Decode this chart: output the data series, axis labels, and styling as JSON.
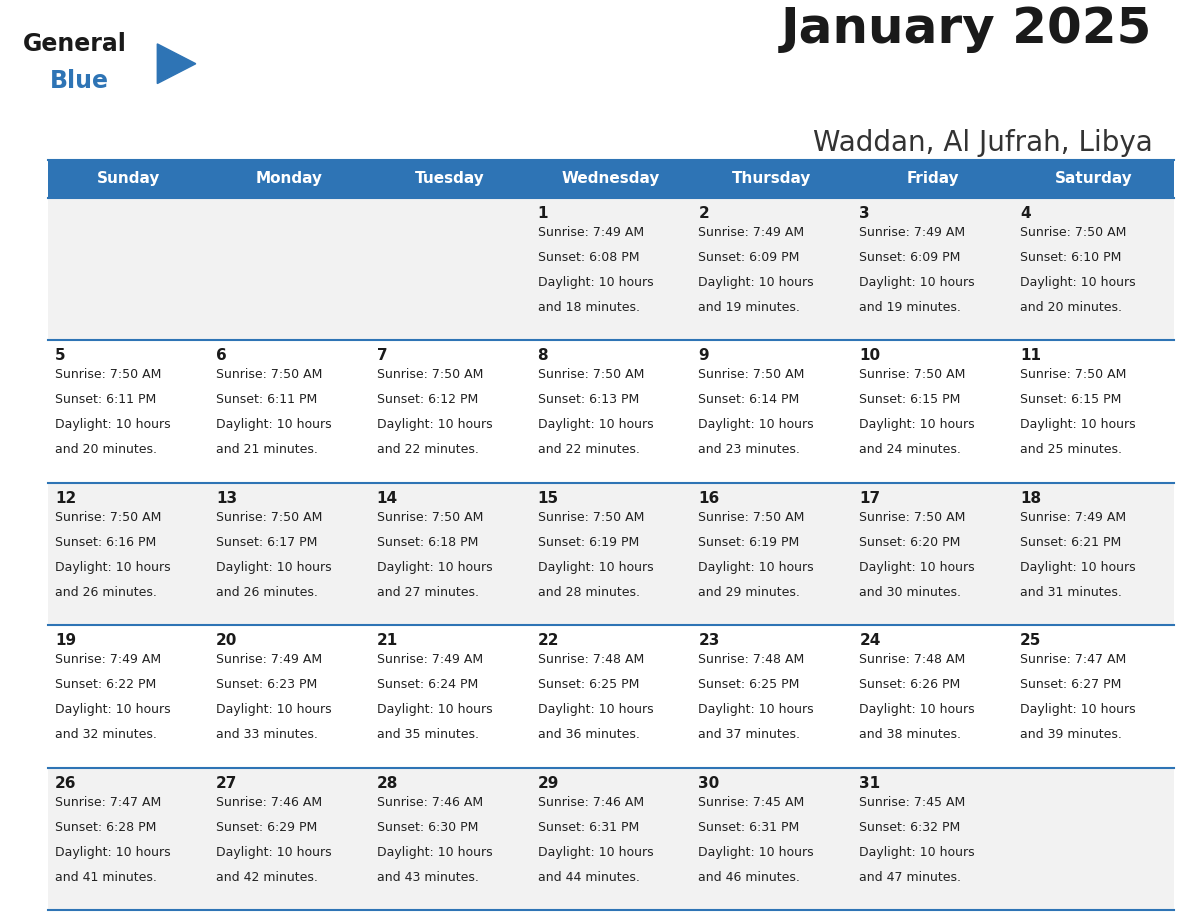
{
  "title": "January 2025",
  "subtitle": "Waddan, Al Jufrah, Libya",
  "days_of_week": [
    "Sunday",
    "Monday",
    "Tuesday",
    "Wednesday",
    "Thursday",
    "Friday",
    "Saturday"
  ],
  "header_bg": "#2E74B5",
  "header_text": "#FFFFFF",
  "row_bg_even": "#F2F2F2",
  "row_bg_odd": "#FFFFFF",
  "cell_border": "#2E74B5",
  "day_number_color": "#1a1a1a",
  "info_text_color": "#222222",
  "title_color": "#1a1a1a",
  "subtitle_color": "#333333",
  "calendar_data": [
    [
      null,
      null,
      null,
      {
        "day": 1,
        "sunrise": "7:49 AM",
        "sunset": "6:08 PM",
        "daylight": "10 hours and 18 minutes."
      },
      {
        "day": 2,
        "sunrise": "7:49 AM",
        "sunset": "6:09 PM",
        "daylight": "10 hours and 19 minutes."
      },
      {
        "day": 3,
        "sunrise": "7:49 AM",
        "sunset": "6:09 PM",
        "daylight": "10 hours and 19 minutes."
      },
      {
        "day": 4,
        "sunrise": "7:50 AM",
        "sunset": "6:10 PM",
        "daylight": "10 hours and 20 minutes."
      }
    ],
    [
      {
        "day": 5,
        "sunrise": "7:50 AM",
        "sunset": "6:11 PM",
        "daylight": "10 hours and 20 minutes."
      },
      {
        "day": 6,
        "sunrise": "7:50 AM",
        "sunset": "6:11 PM",
        "daylight": "10 hours and 21 minutes."
      },
      {
        "day": 7,
        "sunrise": "7:50 AM",
        "sunset": "6:12 PM",
        "daylight": "10 hours and 22 minutes."
      },
      {
        "day": 8,
        "sunrise": "7:50 AM",
        "sunset": "6:13 PM",
        "daylight": "10 hours and 22 minutes."
      },
      {
        "day": 9,
        "sunrise": "7:50 AM",
        "sunset": "6:14 PM",
        "daylight": "10 hours and 23 minutes."
      },
      {
        "day": 10,
        "sunrise": "7:50 AM",
        "sunset": "6:15 PM",
        "daylight": "10 hours and 24 minutes."
      },
      {
        "day": 11,
        "sunrise": "7:50 AM",
        "sunset": "6:15 PM",
        "daylight": "10 hours and 25 minutes."
      }
    ],
    [
      {
        "day": 12,
        "sunrise": "7:50 AM",
        "sunset": "6:16 PM",
        "daylight": "10 hours and 26 minutes."
      },
      {
        "day": 13,
        "sunrise": "7:50 AM",
        "sunset": "6:17 PM",
        "daylight": "10 hours and 26 minutes."
      },
      {
        "day": 14,
        "sunrise": "7:50 AM",
        "sunset": "6:18 PM",
        "daylight": "10 hours and 27 minutes."
      },
      {
        "day": 15,
        "sunrise": "7:50 AM",
        "sunset": "6:19 PM",
        "daylight": "10 hours and 28 minutes."
      },
      {
        "day": 16,
        "sunrise": "7:50 AM",
        "sunset": "6:19 PM",
        "daylight": "10 hours and 29 minutes."
      },
      {
        "day": 17,
        "sunrise": "7:50 AM",
        "sunset": "6:20 PM",
        "daylight": "10 hours and 30 minutes."
      },
      {
        "day": 18,
        "sunrise": "7:49 AM",
        "sunset": "6:21 PM",
        "daylight": "10 hours and 31 minutes."
      }
    ],
    [
      {
        "day": 19,
        "sunrise": "7:49 AM",
        "sunset": "6:22 PM",
        "daylight": "10 hours and 32 minutes."
      },
      {
        "day": 20,
        "sunrise": "7:49 AM",
        "sunset": "6:23 PM",
        "daylight": "10 hours and 33 minutes."
      },
      {
        "day": 21,
        "sunrise": "7:49 AM",
        "sunset": "6:24 PM",
        "daylight": "10 hours and 35 minutes."
      },
      {
        "day": 22,
        "sunrise": "7:48 AM",
        "sunset": "6:25 PM",
        "daylight": "10 hours and 36 minutes."
      },
      {
        "day": 23,
        "sunrise": "7:48 AM",
        "sunset": "6:25 PM",
        "daylight": "10 hours and 37 minutes."
      },
      {
        "day": 24,
        "sunrise": "7:48 AM",
        "sunset": "6:26 PM",
        "daylight": "10 hours and 38 minutes."
      },
      {
        "day": 25,
        "sunrise": "7:47 AM",
        "sunset": "6:27 PM",
        "daylight": "10 hours and 39 minutes."
      }
    ],
    [
      {
        "day": 26,
        "sunrise": "7:47 AM",
        "sunset": "6:28 PM",
        "daylight": "10 hours and 41 minutes."
      },
      {
        "day": 27,
        "sunrise": "7:46 AM",
        "sunset": "6:29 PM",
        "daylight": "10 hours and 42 minutes."
      },
      {
        "day": 28,
        "sunrise": "7:46 AM",
        "sunset": "6:30 PM",
        "daylight": "10 hours and 43 minutes."
      },
      {
        "day": 29,
        "sunrise": "7:46 AM",
        "sunset": "6:31 PM",
        "daylight": "10 hours and 44 minutes."
      },
      {
        "day": 30,
        "sunrise": "7:45 AM",
        "sunset": "6:31 PM",
        "daylight": "10 hours and 46 minutes."
      },
      {
        "day": 31,
        "sunrise": "7:45 AM",
        "sunset": "6:32 PM",
        "daylight": "10 hours and 47 minutes."
      },
      null
    ]
  ],
  "logo_general_color": "#1a1a1a",
  "logo_blue_color": "#2E74B5",
  "logo_triangle_color": "#2E74B5"
}
